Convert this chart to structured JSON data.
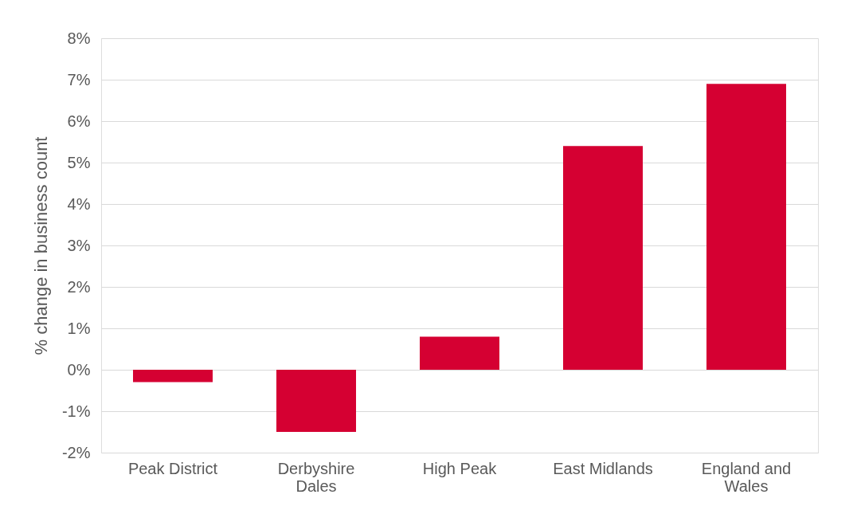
{
  "chart_data": {
    "type": "bar",
    "ylabel": "% change in business count",
    "categories": [
      "Peak District",
      "Derbyshire Dales",
      "High Peak",
      "East Midlands",
      "England and Wales"
    ],
    "values": [
      -0.3,
      -1.5,
      0.8,
      5.4,
      6.9
    ],
    "color": "#d50032",
    "ylim": [
      -2,
      8
    ],
    "yticks": [
      {
        "value": -2,
        "label": "-2%"
      },
      {
        "value": -1,
        "label": "-1%"
      },
      {
        "value": 0,
        "label": "0%"
      },
      {
        "value": 1,
        "label": "1%"
      },
      {
        "value": 2,
        "label": "2%"
      },
      {
        "value": 3,
        "label": "3%"
      },
      {
        "value": 4,
        "label": "4%"
      },
      {
        "value": 5,
        "label": "5%"
      },
      {
        "value": 6,
        "label": "6%"
      },
      {
        "value": 7,
        "label": "7%"
      },
      {
        "value": 8,
        "label": "8%"
      }
    ],
    "grid": "y"
  }
}
